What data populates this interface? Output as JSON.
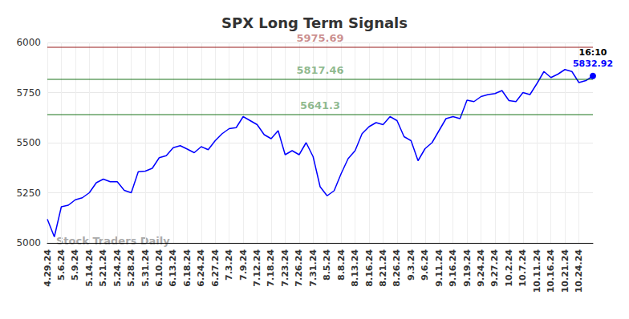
{
  "chart_data": {
    "type": "line",
    "title": "SPX Long Term Signals",
    "categories": [
      "4.29.24",
      null,
      "5.6.24",
      null,
      "5.9.24",
      null,
      "5.14.24",
      null,
      "5.21.24",
      null,
      "5.24.24",
      null,
      "5.28.24",
      null,
      "5.31.24",
      null,
      "6.10.24",
      null,
      "6.13.24",
      null,
      "6.18.24",
      null,
      "6.24.24",
      null,
      "6.27.24",
      null,
      "7.3.24",
      null,
      "7.9.24",
      null,
      "7.12.24",
      null,
      "7.18.24",
      null,
      "7.23.24",
      null,
      "7.26.24",
      null,
      "7.31.24",
      null,
      "8.5.24",
      null,
      "8.8.24",
      null,
      "8.13.24",
      null,
      "8.16.24",
      null,
      "8.21.24",
      null,
      "8.26.24",
      null,
      "9.3.24",
      null,
      "9.6.24",
      null,
      "9.11.24",
      null,
      "9.16.24",
      null,
      "9.19.24",
      null,
      "9.24.24",
      null,
      "9.27.24",
      null,
      "10.2.24",
      null,
      "10.7.24",
      null,
      "10.11.24",
      null,
      "10.16.24",
      null,
      "10.21.24",
      null,
      "10.24.24",
      null,
      null
    ],
    "values": [
      5118,
      5030,
      5180,
      5188,
      5215,
      5225,
      5250,
      5300,
      5318,
      5305,
      5305,
      5262,
      5250,
      5355,
      5358,
      5372,
      5425,
      5435,
      5475,
      5485,
      5468,
      5450,
      5480,
      5465,
      5510,
      5545,
      5570,
      5575,
      5630,
      5610,
      5590,
      5540,
      5520,
      5560,
      5440,
      5460,
      5440,
      5500,
      5430,
      5280,
      5235,
      5260,
      5345,
      5420,
      5460,
      5545,
      5580,
      5600,
      5590,
      5630,
      5610,
      5530,
      5510,
      5410,
      5470,
      5500,
      5560,
      5620,
      5630,
      5620,
      5712,
      5705,
      5730,
      5740,
      5745,
      5760,
      5710,
      5705,
      5750,
      5740,
      5795,
      5855,
      5825,
      5842,
      5865,
      5855,
      5800,
      5810,
      5832.92
    ],
    "color": "#0000ff",
    "ylim": [
      5000,
      6000
    ],
    "yticks": [
      5000,
      5250,
      5500,
      5750,
      6000
    ],
    "grid": true,
    "levels": [
      {
        "value": 5975.69,
        "color": "#8b0000"
      },
      {
        "value": 5817.46,
        "color": "#006400"
      },
      {
        "value": 5641.3,
        "color": "#006400"
      }
    ],
    "last_point_label": "16:10",
    "watermark": "Stock Traders Daily"
  }
}
